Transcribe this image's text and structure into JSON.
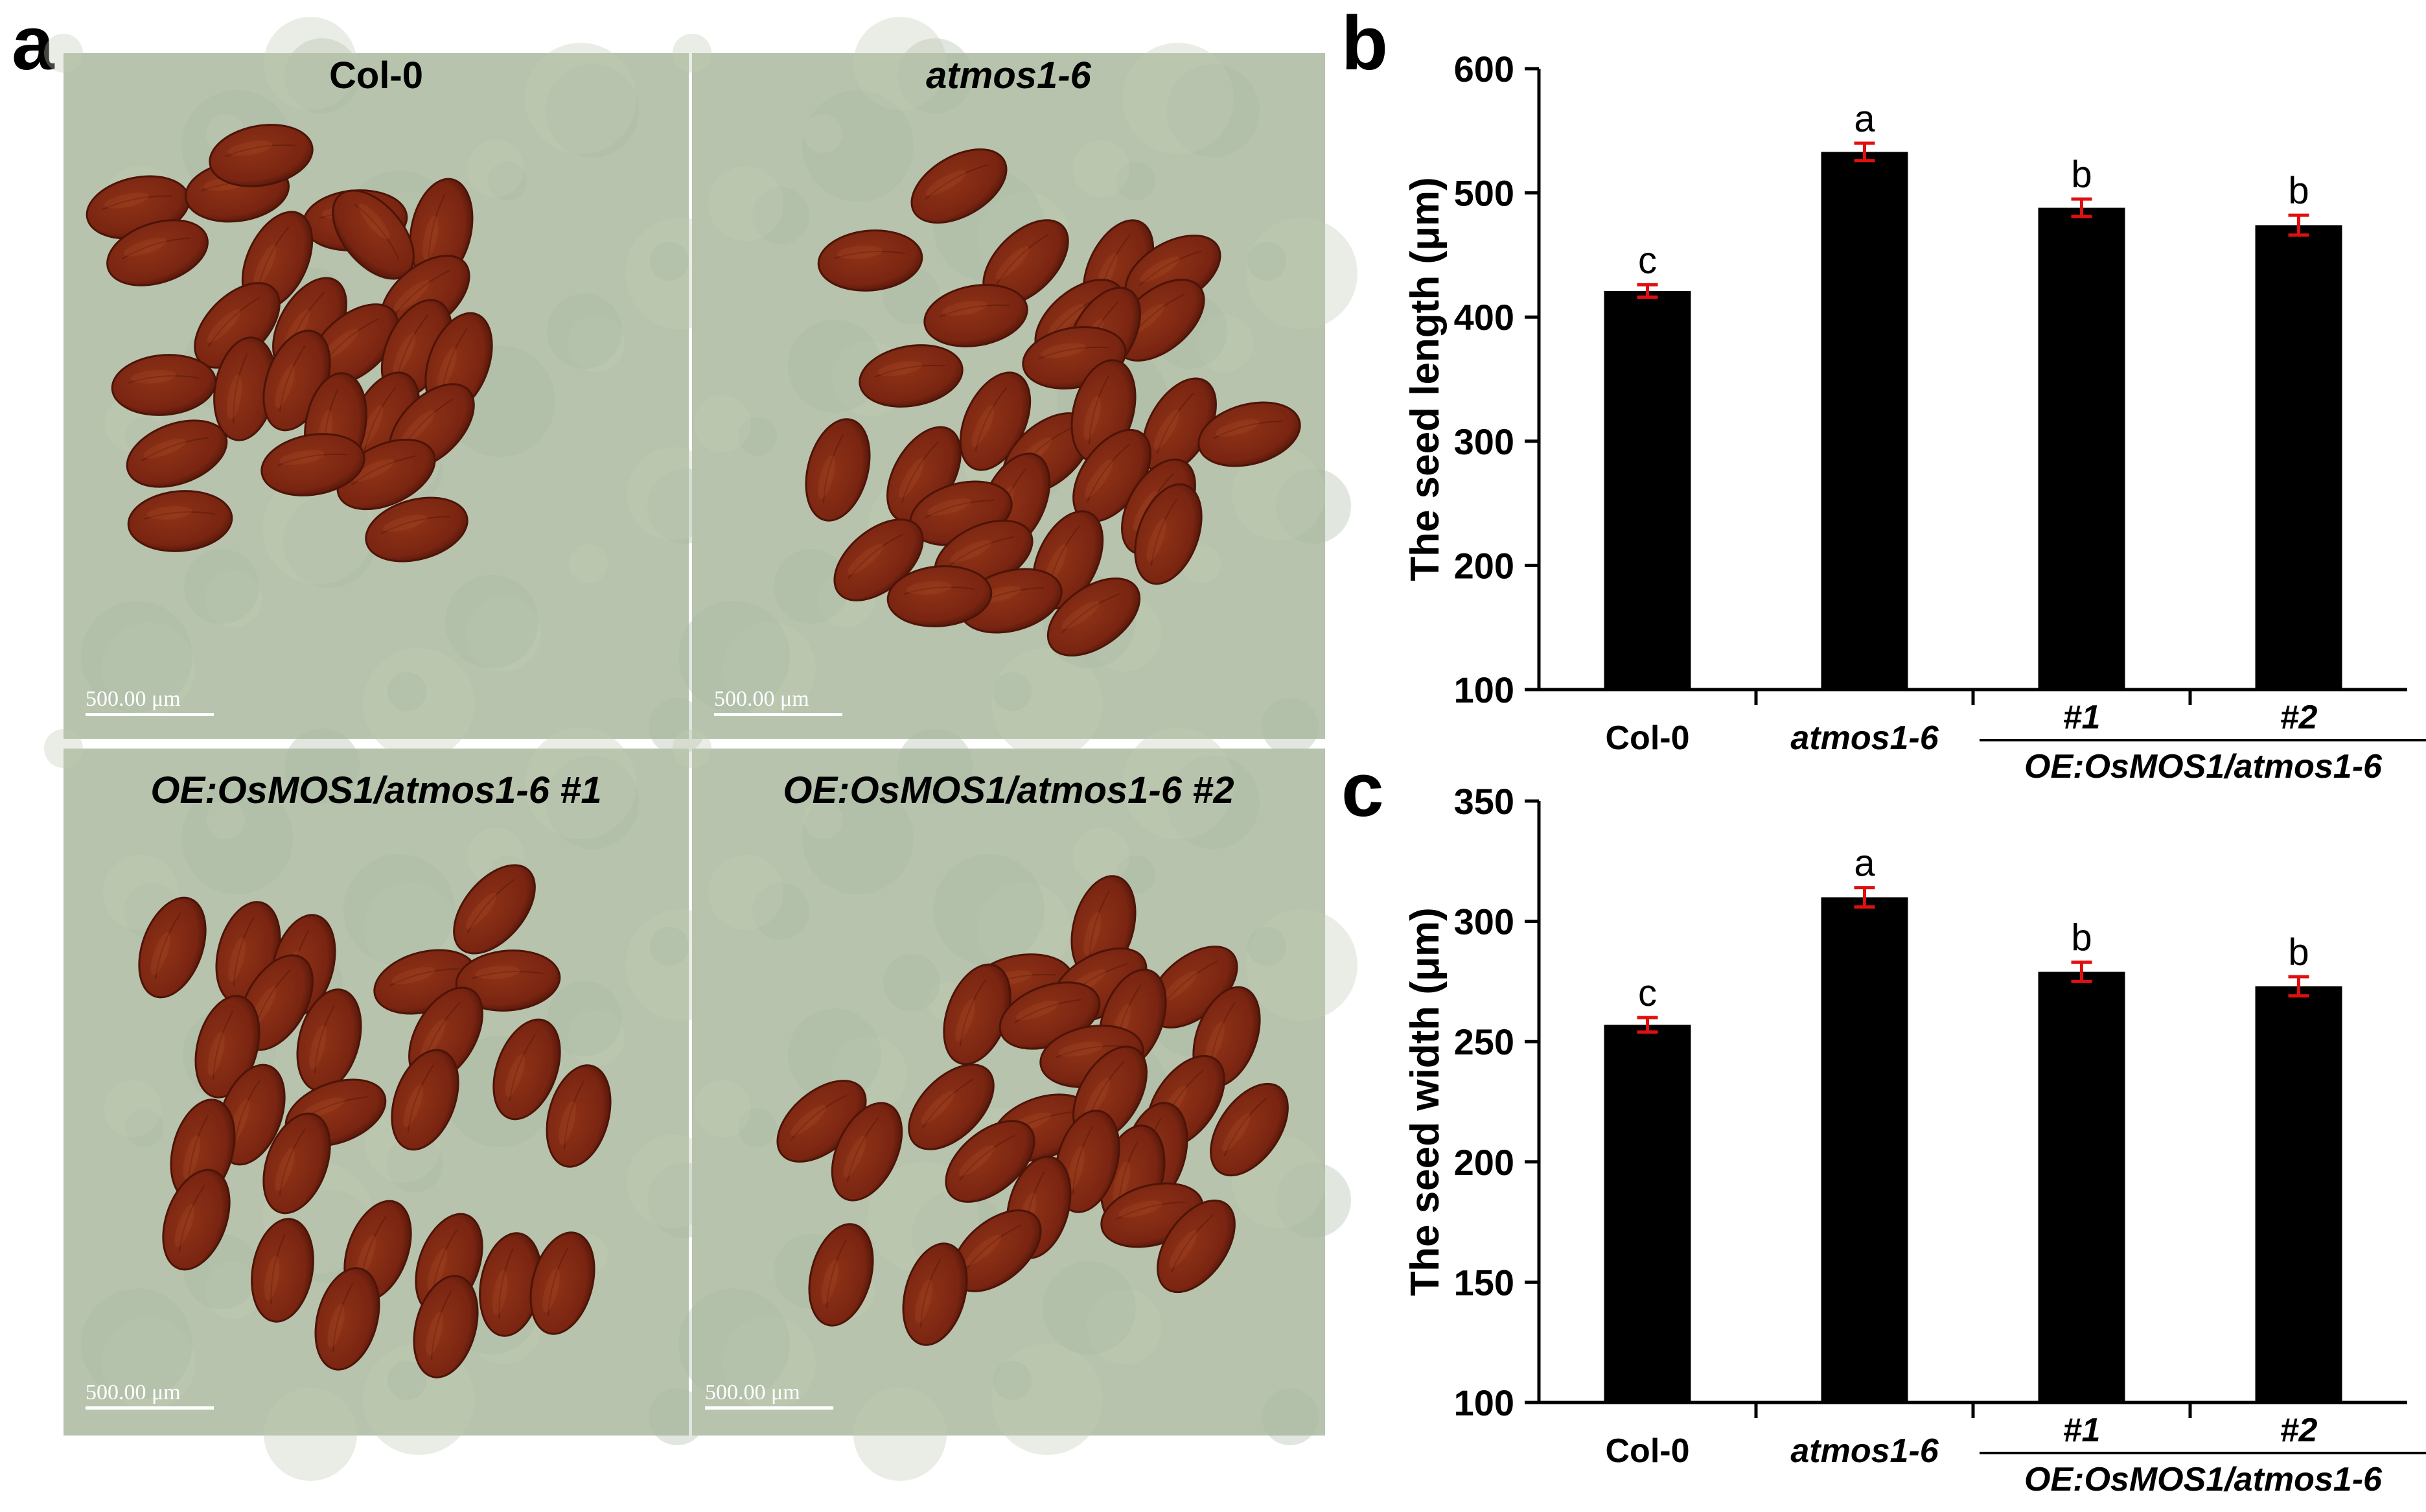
{
  "panel_labels": {
    "a": "a",
    "b": "b",
    "c": "c"
  },
  "photos": [
    {
      "title": "Col-0",
      "italic": false,
      "scale_label": "500.00 μm"
    },
    {
      "title": "atmos1-6",
      "italic": true,
      "scale_label": "500.00 μm"
    },
    {
      "title": "OE:OsMOS1/atmos1-6 #1",
      "italic": true,
      "scale_label": "500.00 μm"
    },
    {
      "title": "OE:OsMOS1/atmos1-6 #2",
      "italic": true,
      "scale_label": "500.00 μm"
    }
  ],
  "colors": {
    "photo_background": "#b7c3ad",
    "seed_fill": "#7a2512",
    "seed_edge": "#4d1407",
    "bar": "#000000",
    "error_bar": "#e01010"
  },
  "chart_data": [
    {
      "type": "bar",
      "panel": "b",
      "categories": [
        "Col-0",
        "atmos1-6",
        "#1",
        "#2"
      ],
      "category_italic": [
        false,
        true,
        true,
        true
      ],
      "group_label": "OE:OsMOS1/atmos1-6",
      "values": [
        421,
        533,
        488,
        474
      ],
      "errors": [
        5,
        7,
        7,
        8
      ],
      "significance": [
        "c",
        "a",
        "b",
        "b"
      ],
      "title": "",
      "xlabel": "",
      "ylabel": "The  seed length (μm)",
      "ylim": [
        100,
        600
      ],
      "yticks": [
        100,
        200,
        300,
        400,
        500,
        600
      ],
      "grid": false,
      "legend": "none"
    },
    {
      "type": "bar",
      "panel": "c",
      "categories": [
        "Col-0",
        "atmos1-6",
        "#1",
        "#2"
      ],
      "category_italic": [
        false,
        true,
        true,
        true
      ],
      "group_label": "OE:OsMOS1/atmos1-6",
      "values": [
        257,
        310,
        279,
        273
      ],
      "errors": [
        3,
        4,
        4,
        4
      ],
      "significance": [
        "c",
        "a",
        "b",
        "b"
      ],
      "title": "",
      "xlabel": "",
      "ylabel": "The  seed width (μm)",
      "ylim": [
        100,
        350
      ],
      "yticks": [
        100,
        150,
        200,
        250,
        300,
        350
      ],
      "grid": false,
      "legend": "none"
    }
  ]
}
